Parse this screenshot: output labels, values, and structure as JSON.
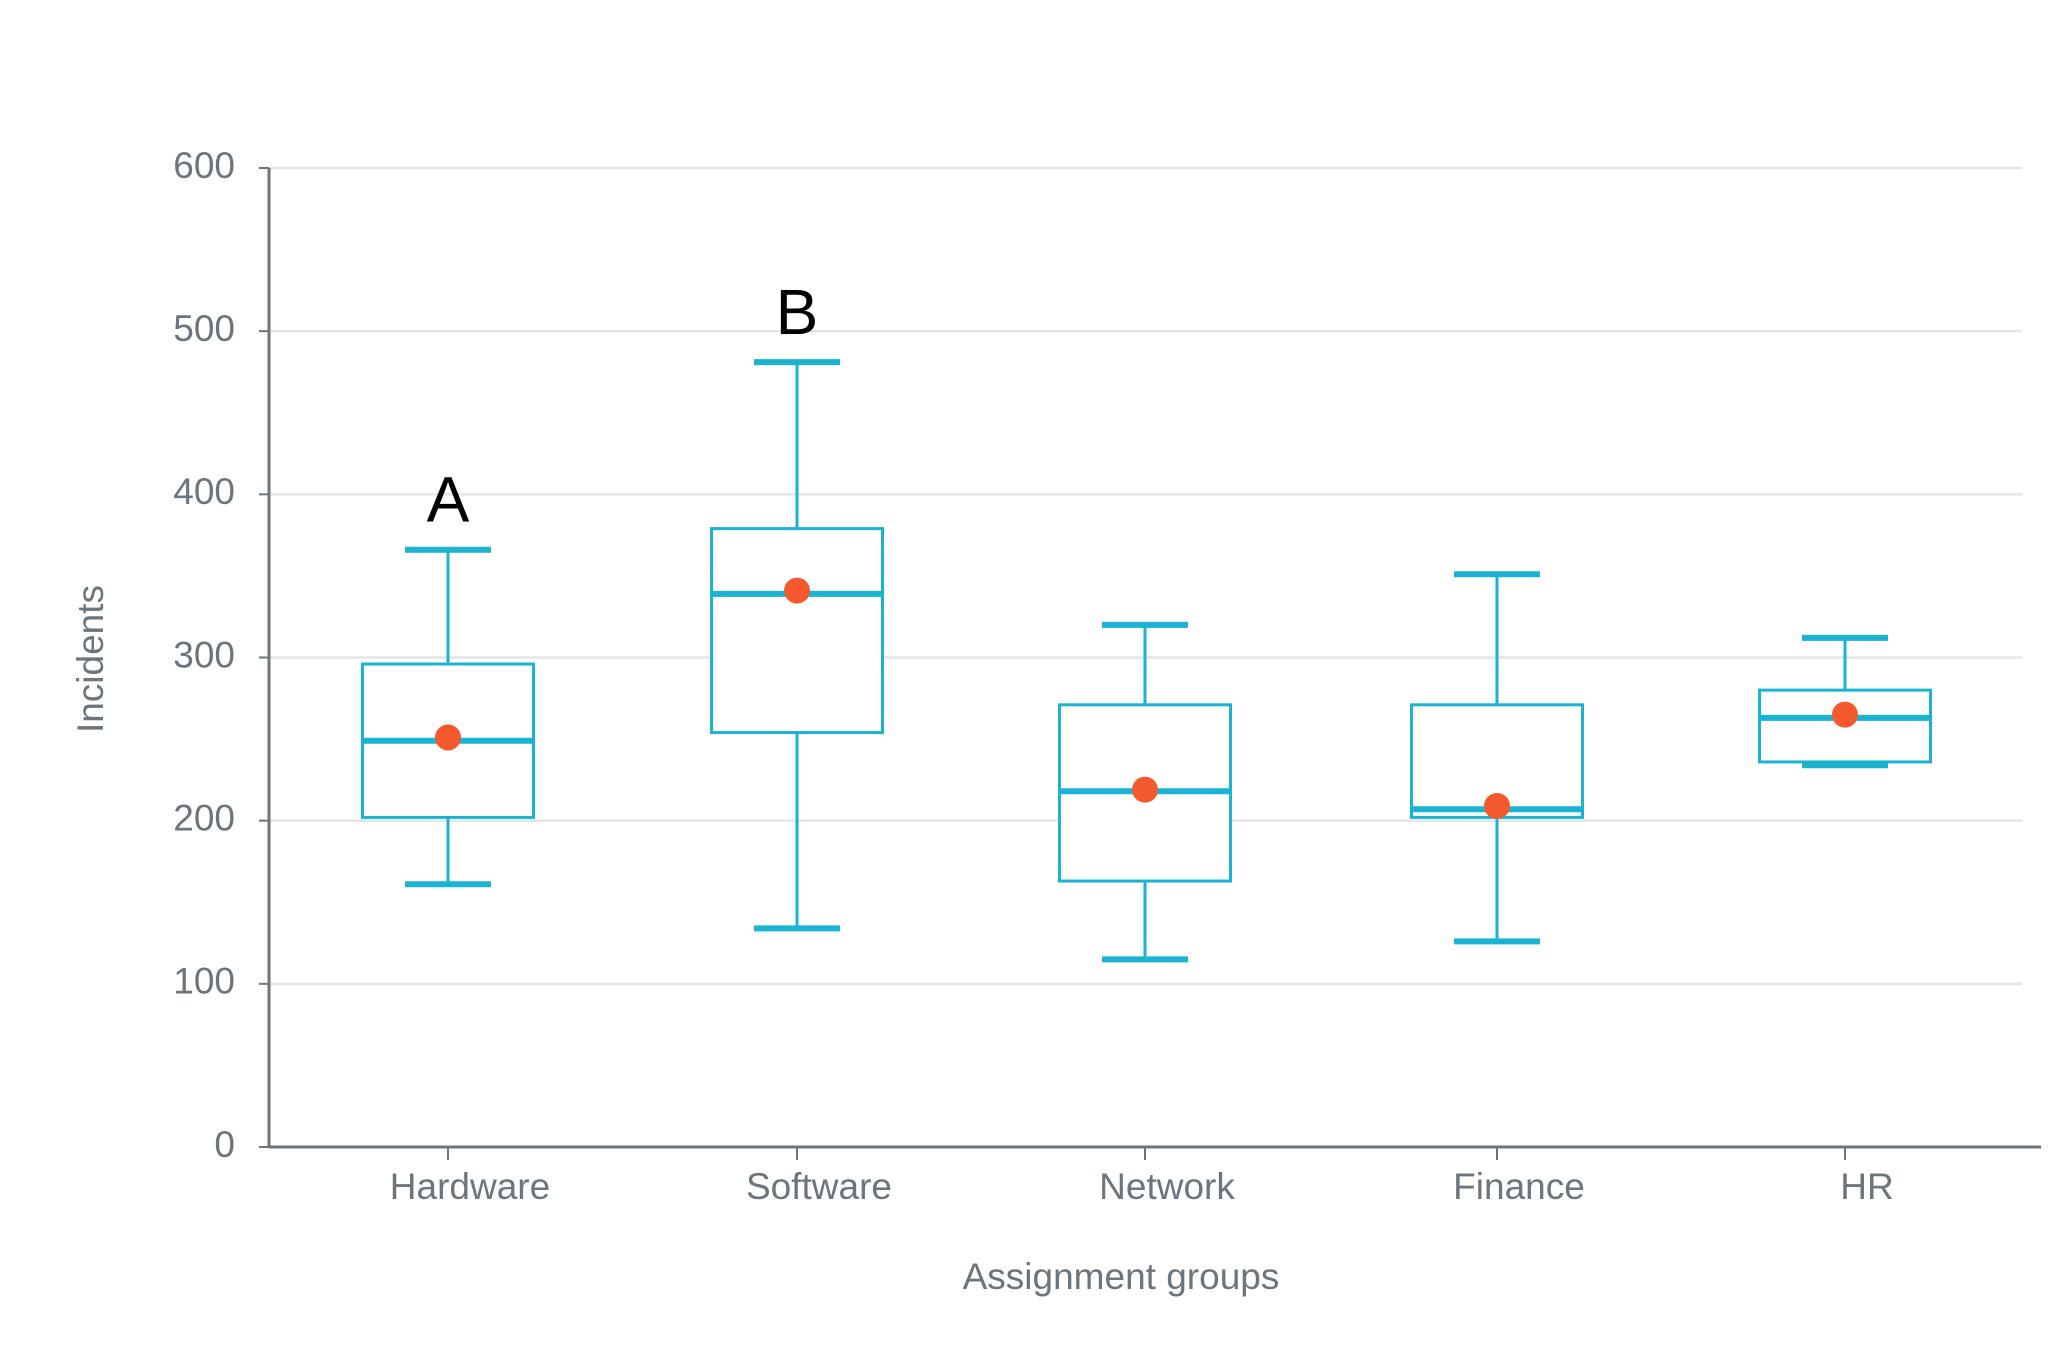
{
  "chart_data": {
    "type": "box",
    "x_label": "Assignment groups",
    "y_label": "Incidents",
    "categories": [
      "Hardware",
      "Software",
      "Network",
      "Finance",
      "HR"
    ],
    "min": [
      161,
      134,
      115,
      126,
      234
    ],
    "q1": [
      202,
      254,
      163,
      202,
      236
    ],
    "median": [
      249,
      339,
      218,
      207,
      263
    ],
    "q3": [
      296,
      379,
      271,
      271,
      280
    ],
    "max": [
      366,
      481,
      320,
      351,
      312
    ],
    "mean": [
      251,
      341,
      219,
      209,
      265
    ],
    "color": "#1ab3d1",
    "mean_color": "#f4592f",
    "ylim": [
      0,
      600
    ],
    "yticks": [
      0,
      100,
      200,
      300,
      400,
      500,
      600
    ],
    "grid": true,
    "annotations": [
      {
        "text": "A",
        "category": 0
      },
      {
        "text": "B",
        "category": 1
      }
    ]
  }
}
